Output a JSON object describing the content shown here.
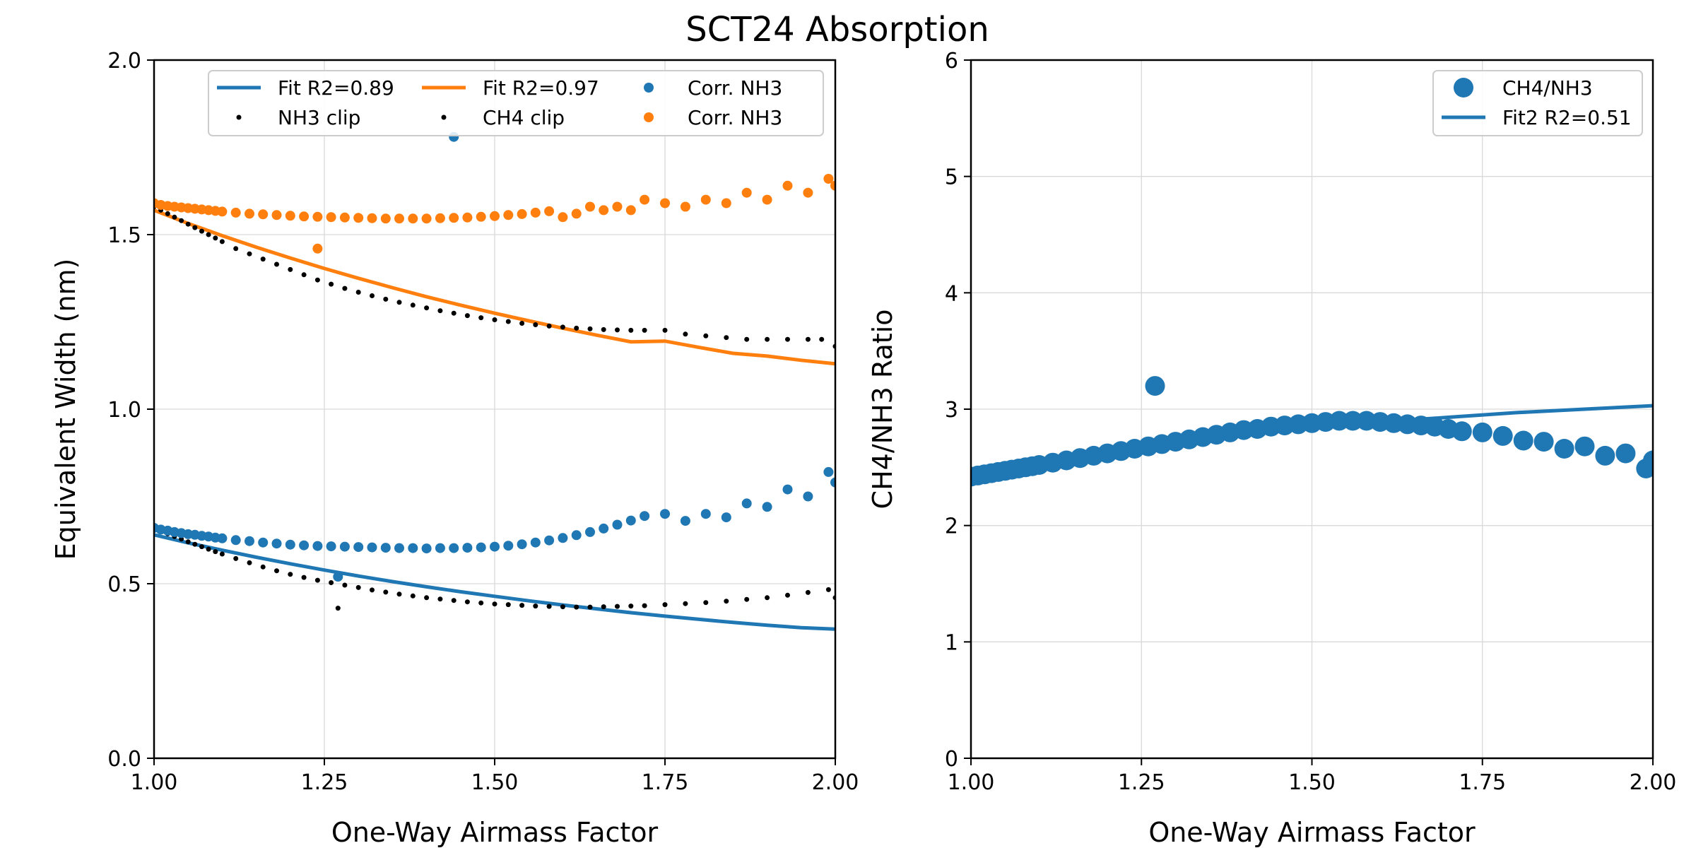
{
  "figure": {
    "title": "SCT24 Absorption"
  },
  "colors": {
    "blue": "#1f77b4",
    "orange": "#ff7f0e",
    "black": "#000000",
    "grid": "#d9d9d9"
  },
  "chart_data": [
    {
      "type": "scatter",
      "xlabel": "One-Way Airmass Factor",
      "ylabel": "Equivalent Width (nm)",
      "xlim": [
        1.0,
        2.0
      ],
      "ylim": [
        0.0,
        2.0
      ],
      "xticks": [
        "1.00",
        "1.25",
        "1.50",
        "1.75",
        "2.00"
      ],
      "yticks": [
        "0.0",
        "0.5",
        "1.0",
        "1.5",
        "2.0"
      ],
      "grid": true,
      "legend_placement": "top-right",
      "legend": [
        "Fit R2=0.89",
        "NH3 clip",
        "Fit R2=0.97",
        "CH4 clip",
        "Corr. NH3",
        "Corr. NH3"
      ],
      "series": [
        {
          "name": "Fit R2=0.89",
          "kind": "line",
          "color": "blue",
          "x": [
            1.0,
            1.05,
            1.1,
            1.15,
            1.2,
            1.25,
            1.3,
            1.35,
            1.4,
            1.45,
            1.5,
            1.55,
            1.6,
            1.65,
            1.7,
            1.75,
            1.8,
            1.85,
            1.9,
            1.95,
            2.0
          ],
          "y": [
            0.64,
            0.617,
            0.596,
            0.576,
            0.557,
            0.539,
            0.522,
            0.506,
            0.491,
            0.477,
            0.464,
            0.451,
            0.439,
            0.428,
            0.417,
            0.407,
            0.398,
            0.389,
            0.381,
            0.374,
            0.37
          ]
        },
        {
          "name": "NH3 clip",
          "kind": "points",
          "color": "black",
          "size": "small",
          "x": [
            1.0,
            1.01,
            1.02,
            1.03,
            1.04,
            1.05,
            1.06,
            1.07,
            1.08,
            1.09,
            1.1,
            1.12,
            1.14,
            1.16,
            1.18,
            1.2,
            1.22,
            1.24,
            1.26,
            1.27,
            1.28,
            1.3,
            1.32,
            1.34,
            1.36,
            1.38,
            1.4,
            1.42,
            1.44,
            1.46,
            1.48,
            1.5,
            1.52,
            1.54,
            1.56,
            1.58,
            1.6,
            1.62,
            1.64,
            1.66,
            1.68,
            1.7,
            1.72,
            1.75,
            1.78,
            1.81,
            1.84,
            1.87,
            1.9,
            1.93,
            1.96,
            1.99,
            2.0
          ],
          "y": [
            0.66,
            0.65,
            0.643,
            0.635,
            0.628,
            0.62,
            0.613,
            0.606,
            0.599,
            0.592,
            0.585,
            0.572,
            0.56,
            0.548,
            0.537,
            0.527,
            0.518,
            0.51,
            0.503,
            0.43,
            0.496,
            0.489,
            0.482,
            0.476,
            0.47,
            0.465,
            0.46,
            0.456,
            0.452,
            0.448,
            0.445,
            0.442,
            0.44,
            0.438,
            0.436,
            0.435,
            0.434,
            0.433,
            0.433,
            0.434,
            0.435,
            0.436,
            0.437,
            0.44,
            0.443,
            0.446,
            0.45,
            0.455,
            0.46,
            0.467,
            0.475,
            0.483,
            0.46
          ]
        },
        {
          "name": "Fit R2=0.97",
          "kind": "line",
          "color": "orange",
          "x": [
            1.0,
            1.05,
            1.1,
            1.15,
            1.2,
            1.25,
            1.3,
            1.35,
            1.4,
            1.45,
            1.5,
            1.55,
            1.6,
            1.65,
            1.7,
            1.75,
            1.8,
            1.85,
            1.9,
            1.95,
            2.0
          ],
          "y": [
            1.57,
            1.532,
            1.497,
            1.464,
            1.433,
            1.403,
            1.375,
            1.348,
            1.322,
            1.298,
            1.275,
            1.253,
            1.232,
            1.212,
            1.193,
            1.195,
            1.177,
            1.16,
            1.152,
            1.14,
            1.13
          ]
        },
        {
          "name": "CH4 clip",
          "kind": "points",
          "color": "black",
          "size": "small",
          "x": [
            1.0,
            1.01,
            1.02,
            1.03,
            1.04,
            1.05,
            1.06,
            1.07,
            1.08,
            1.09,
            1.1,
            1.12,
            1.14,
            1.16,
            1.18,
            1.2,
            1.22,
            1.24,
            1.26,
            1.28,
            1.3,
            1.32,
            1.34,
            1.36,
            1.38,
            1.4,
            1.42,
            1.44,
            1.46,
            1.48,
            1.5,
            1.52,
            1.54,
            1.56,
            1.58,
            1.6,
            1.62,
            1.64,
            1.66,
            1.68,
            1.7,
            1.72,
            1.75,
            1.78,
            1.81,
            1.84,
            1.87,
            1.9,
            1.93,
            1.96,
            1.98,
            2.0
          ],
          "y": [
            1.58,
            1.57,
            1.56,
            1.55,
            1.54,
            1.53,
            1.52,
            1.51,
            1.5,
            1.49,
            1.48,
            1.46,
            1.445,
            1.43,
            1.415,
            1.4,
            1.385,
            1.37,
            1.358,
            1.346,
            1.335,
            1.325,
            1.315,
            1.306,
            1.298,
            1.29,
            1.282,
            1.275,
            1.268,
            1.262,
            1.256,
            1.251,
            1.246,
            1.242,
            1.238,
            1.235,
            1.232,
            1.23,
            1.228,
            1.227,
            1.226,
            1.226,
            1.226,
            1.215,
            1.21,
            1.205,
            1.2,
            1.2,
            1.2,
            1.2,
            1.2,
            1.18
          ]
        },
        {
          "name": "Corr. NH3",
          "kind": "points",
          "color": "blue",
          "size": "medium",
          "x": [
            1.0,
            1.01,
            1.02,
            1.03,
            1.04,
            1.05,
            1.06,
            1.07,
            1.08,
            1.09,
            1.1,
            1.12,
            1.14,
            1.16,
            1.18,
            1.2,
            1.22,
            1.24,
            1.26,
            1.28,
            1.3,
            1.32,
            1.34,
            1.36,
            1.38,
            1.4,
            1.42,
            1.44,
            1.46,
            1.48,
            1.5,
            1.52,
            1.54,
            1.56,
            1.58,
            1.6,
            1.62,
            1.64,
            1.66,
            1.68,
            1.7,
            1.72,
            1.75,
            1.78,
            1.81,
            1.84,
            1.87,
            1.9,
            1.93,
            1.96,
            1.99,
            2.0,
            1.44,
            1.27
          ],
          "y": [
            0.66,
            0.655,
            0.652,
            0.648,
            0.645,
            0.642,
            0.64,
            0.637,
            0.635,
            0.632,
            0.63,
            0.625,
            0.622,
            0.618,
            0.615,
            0.612,
            0.61,
            0.608,
            0.607,
            0.606,
            0.605,
            0.604,
            0.603,
            0.602,
            0.602,
            0.601,
            0.602,
            0.602,
            0.603,
            0.604,
            0.606,
            0.609,
            0.613,
            0.618,
            0.624,
            0.631,
            0.639,
            0.648,
            0.658,
            0.669,
            0.681,
            0.694,
            0.7,
            0.68,
            0.7,
            0.69,
            0.73,
            0.72,
            0.77,
            0.75,
            0.82,
            0.79,
            1.78,
            0.52
          ]
        },
        {
          "name": "Corr. NH3",
          "kind": "points",
          "color": "orange",
          "size": "medium",
          "x": [
            1.0,
            1.01,
            1.02,
            1.03,
            1.04,
            1.05,
            1.06,
            1.07,
            1.08,
            1.09,
            1.1,
            1.12,
            1.14,
            1.16,
            1.18,
            1.2,
            1.22,
            1.24,
            1.26,
            1.28,
            1.3,
            1.32,
            1.34,
            1.36,
            1.38,
            1.4,
            1.42,
            1.44,
            1.46,
            1.48,
            1.5,
            1.52,
            1.54,
            1.56,
            1.58,
            1.6,
            1.62,
            1.64,
            1.66,
            1.68,
            1.7,
            1.72,
            1.75,
            1.78,
            1.81,
            1.84,
            1.87,
            1.9,
            1.93,
            1.96,
            1.99,
            2.0,
            1.24
          ],
          "y": [
            1.59,
            1.585,
            1.582,
            1.58,
            1.578,
            1.576,
            1.574,
            1.572,
            1.57,
            1.568,
            1.566,
            1.563,
            1.56,
            1.558,
            1.556,
            1.554,
            1.552,
            1.551,
            1.55,
            1.549,
            1.548,
            1.547,
            1.546,
            1.546,
            1.546,
            1.546,
            1.547,
            1.548,
            1.549,
            1.551,
            1.553,
            1.556,
            1.559,
            1.563,
            1.567,
            1.55,
            1.56,
            1.58,
            1.57,
            1.58,
            1.57,
            1.6,
            1.59,
            1.58,
            1.6,
            1.59,
            1.62,
            1.6,
            1.64,
            1.62,
            1.66,
            1.64,
            1.46
          ]
        }
      ]
    },
    {
      "type": "scatter",
      "xlabel": "One-Way Airmass Factor",
      "ylabel": "CH4/NH3 Ratio",
      "xlim": [
        1.0,
        2.0
      ],
      "ylim": [
        0,
        6
      ],
      "xticks": [
        "1.00",
        "1.25",
        "1.50",
        "1.75",
        "2.00"
      ],
      "yticks": [
        "0",
        "1",
        "2",
        "3",
        "4",
        "5",
        "6"
      ],
      "grid": true,
      "legend_placement": "top-right",
      "legend": [
        "CH4/NH3",
        "Fit2 R2=0.51"
      ],
      "series": [
        {
          "name": "CH4/NH3",
          "kind": "points",
          "color": "blue",
          "size": "large",
          "x": [
            1.0,
            1.01,
            1.02,
            1.03,
            1.04,
            1.05,
            1.06,
            1.07,
            1.08,
            1.09,
            1.1,
            1.12,
            1.14,
            1.16,
            1.18,
            1.2,
            1.22,
            1.24,
            1.26,
            1.28,
            1.3,
            1.32,
            1.34,
            1.36,
            1.38,
            1.4,
            1.42,
            1.44,
            1.46,
            1.48,
            1.5,
            1.52,
            1.54,
            1.56,
            1.58,
            1.6,
            1.62,
            1.64,
            1.66,
            1.68,
            1.7,
            1.72,
            1.75,
            1.78,
            1.81,
            1.84,
            1.87,
            1.9,
            1.93,
            1.96,
            1.99,
            2.0,
            1.27
          ],
          "y": [
            2.42,
            2.43,
            2.44,
            2.45,
            2.46,
            2.47,
            2.48,
            2.49,
            2.5,
            2.51,
            2.52,
            2.54,
            2.56,
            2.58,
            2.6,
            2.62,
            2.64,
            2.66,
            2.68,
            2.7,
            2.72,
            2.74,
            2.76,
            2.78,
            2.8,
            2.82,
            2.83,
            2.85,
            2.86,
            2.87,
            2.88,
            2.89,
            2.9,
            2.9,
            2.9,
            2.89,
            2.88,
            2.87,
            2.86,
            2.85,
            2.83,
            2.81,
            2.8,
            2.77,
            2.73,
            2.72,
            2.66,
            2.68,
            2.6,
            2.62,
            2.49,
            2.56,
            3.2
          ]
        },
        {
          "name": "Fit2 R2=0.51",
          "kind": "line",
          "color": "blue",
          "x": [
            1.0,
            1.1,
            1.2,
            1.3,
            1.4,
            1.5,
            1.6,
            1.7,
            1.8,
            1.9,
            2.0
          ],
          "y": [
            2.42,
            2.55,
            2.65,
            2.73,
            2.79,
            2.85,
            2.89,
            2.93,
            2.97,
            3.0,
            3.03
          ]
        }
      ]
    }
  ]
}
